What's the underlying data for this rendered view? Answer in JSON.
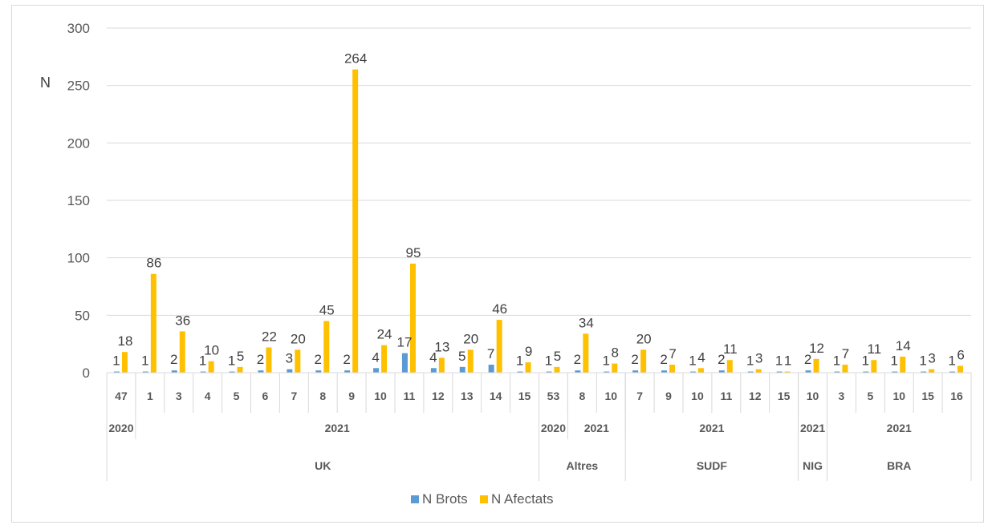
{
  "chart_data": {
    "type": "bar",
    "ylabel": "N",
    "ylim": [
      0,
      300
    ],
    "yticks": [
      0,
      50,
      100,
      150,
      200,
      250,
      300
    ],
    "grid": true,
    "legend_position": "bottom",
    "colors": {
      "N Brots": "#5b9bd5",
      "N Afectats": "#ffc000"
    },
    "groups": [
      {
        "name": "UK",
        "years": [
          {
            "label": "2020",
            "weeks": 1
          },
          {
            "label": "2021",
            "weeks": 14
          }
        ]
      },
      {
        "name": "Altres",
        "years": [
          {
            "label": "2020",
            "weeks": 1
          },
          {
            "label": "2021",
            "weeks": 2
          }
        ]
      },
      {
        "name": "SUDF",
        "years": [
          {
            "label": "2021",
            "weeks": 6
          }
        ]
      },
      {
        "name": "NIG",
        "years": [
          {
            "label": "2021",
            "weeks": 1
          }
        ]
      },
      {
        "name": "BRA",
        "years": [
          {
            "label": "2021",
            "weeks": 5
          }
        ]
      }
    ],
    "categories": [
      "47",
      "1",
      "3",
      "4",
      "5",
      "6",
      "7",
      "8",
      "9",
      "10",
      "11",
      "12",
      "13",
      "14",
      "15",
      "53",
      "8",
      "10",
      "7",
      "9",
      "10",
      "11",
      "12",
      "15",
      "10",
      "3",
      "5",
      "10",
      "15",
      "16"
    ],
    "series": [
      {
        "name": "N Brots",
        "values": [
          1,
          1,
          2,
          1,
          1,
          2,
          3,
          2,
          2,
          4,
          17,
          4,
          5,
          7,
          1,
          1,
          2,
          1,
          2,
          2,
          1,
          2,
          1,
          1,
          2,
          1,
          1,
          1,
          1,
          1
        ]
      },
      {
        "name": "N Afectats",
        "values": [
          18,
          86,
          36,
          10,
          5,
          22,
          20,
          45,
          264,
          24,
          95,
          13,
          20,
          46,
          9,
          5,
          34,
          8,
          20,
          7,
          4,
          11,
          3,
          1,
          12,
          7,
          11,
          14,
          3,
          6
        ]
      }
    ]
  }
}
